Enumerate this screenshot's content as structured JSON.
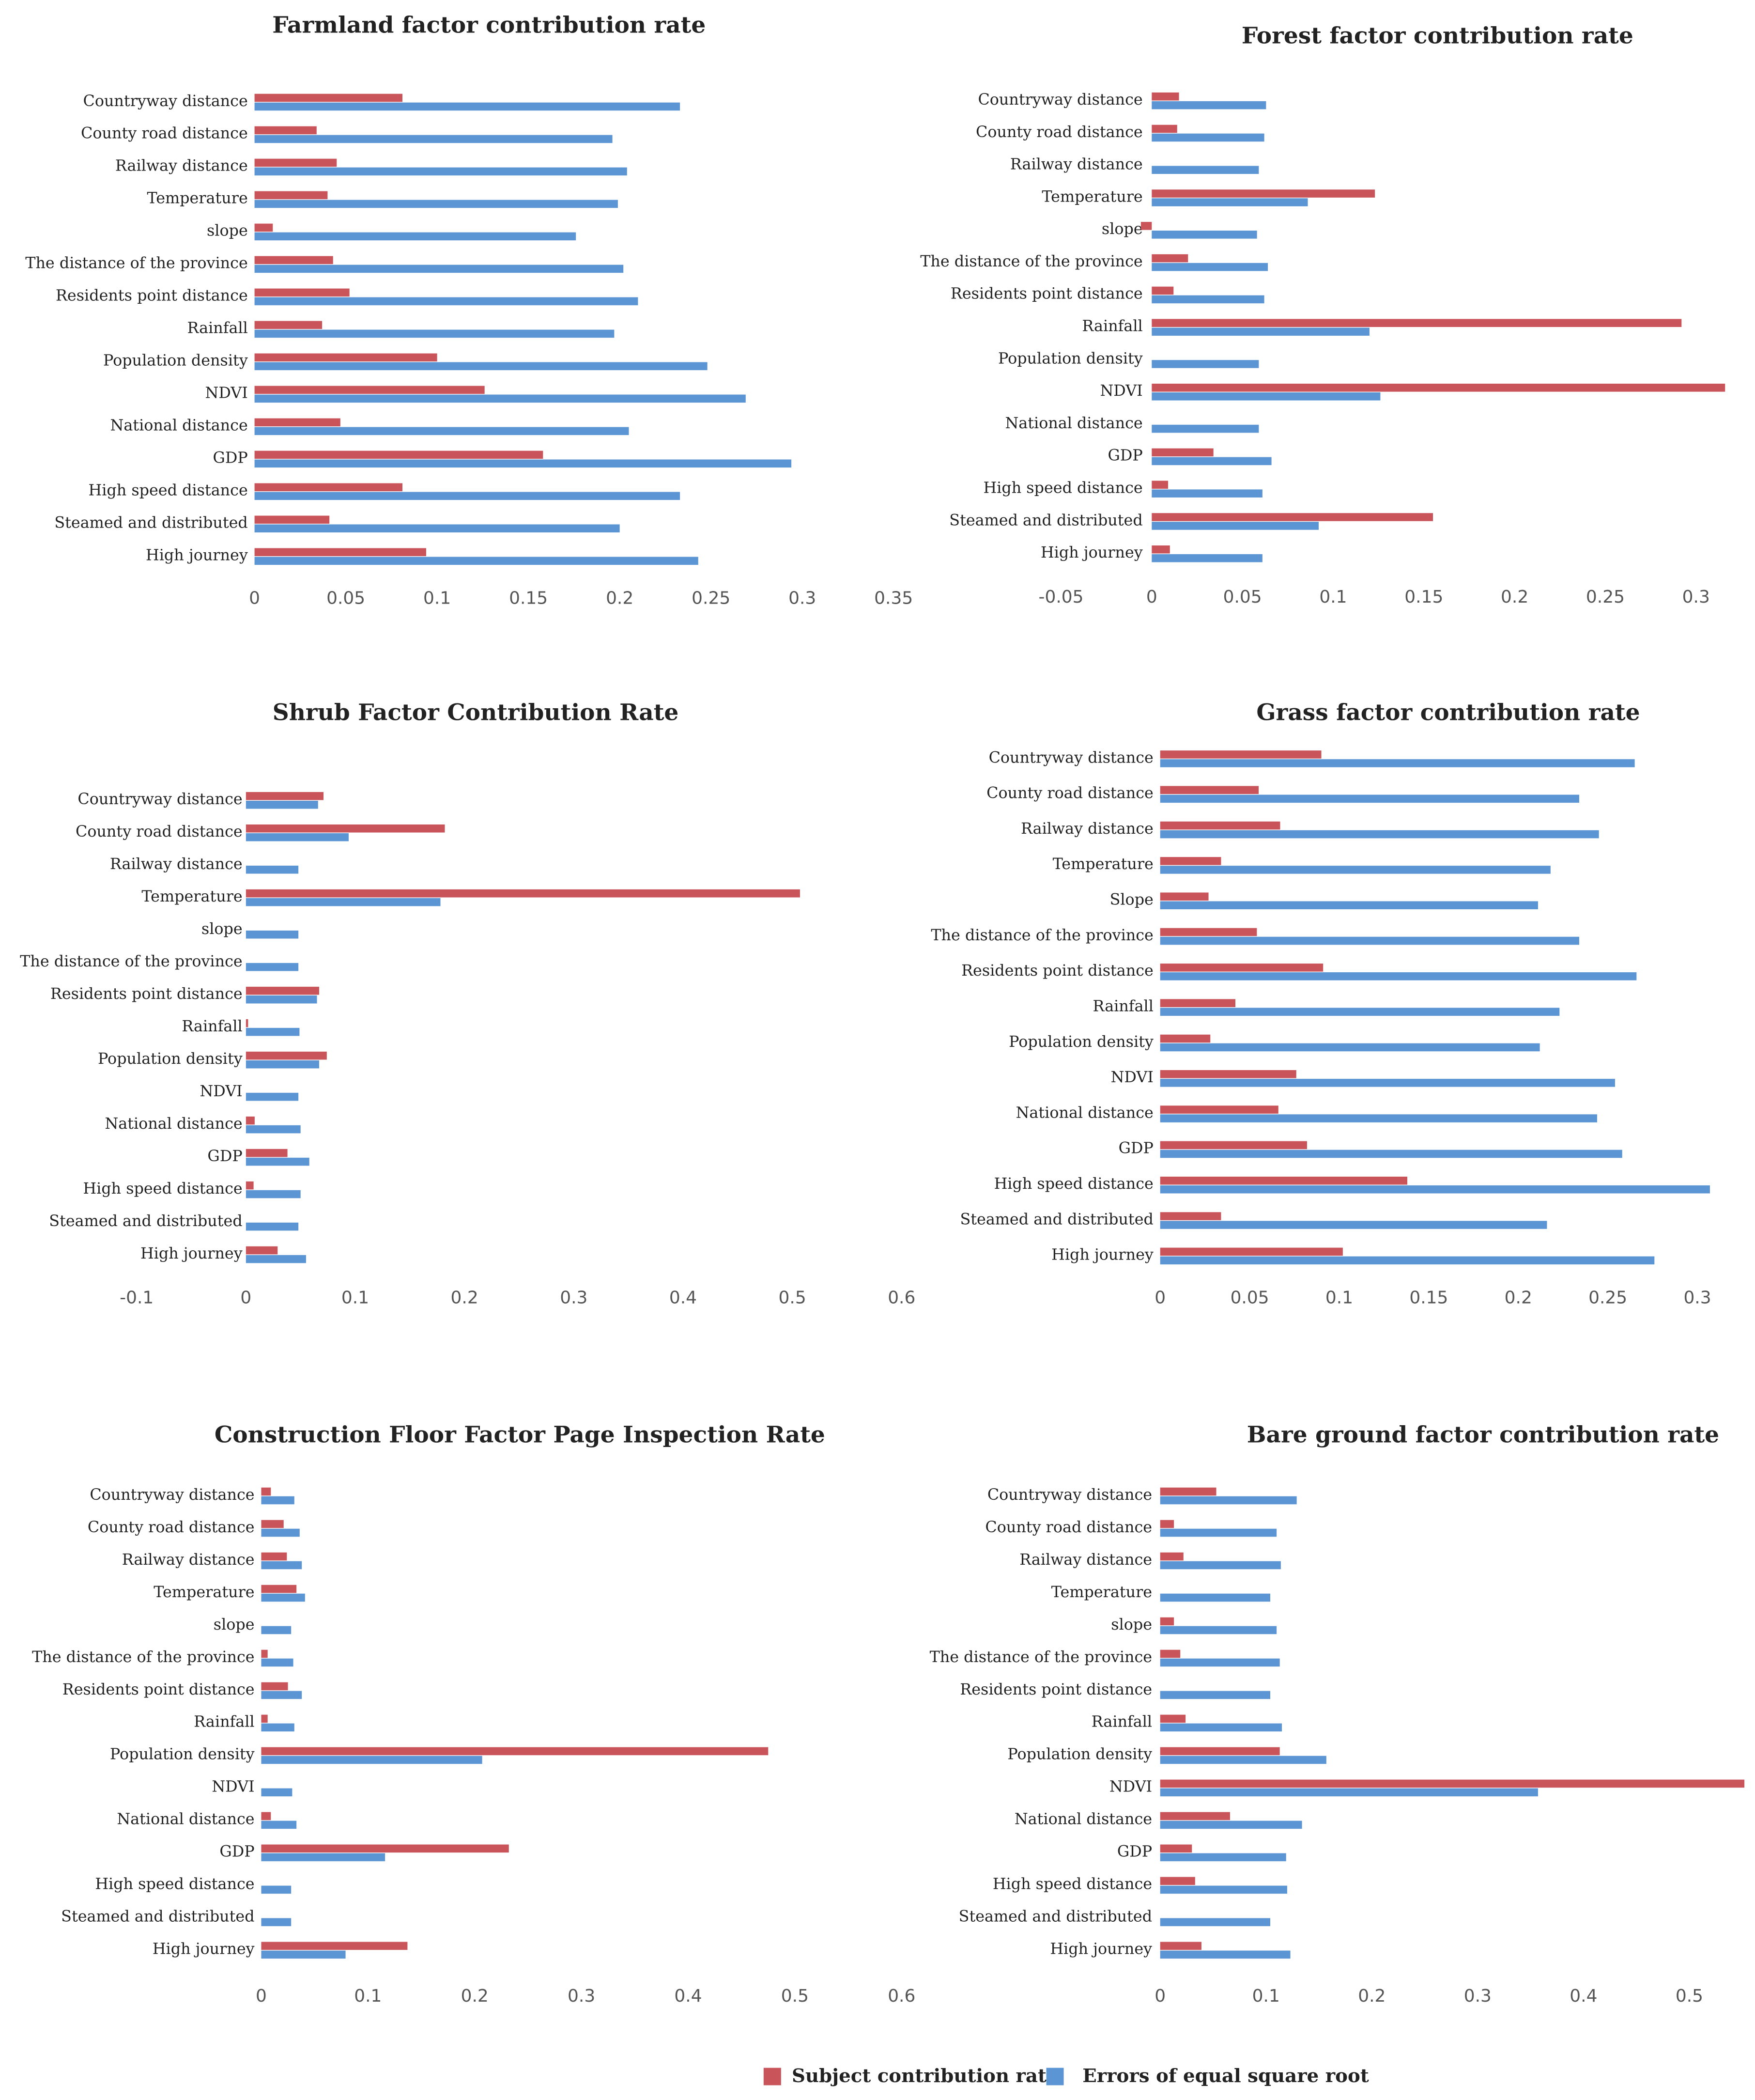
{
  "legend": [
    {
      "name": "Subject contribution rate",
      "color": "#c9545a"
    },
    {
      "name": "Errors of equal square root",
      "color": "#5b95d3"
    }
  ],
  "chart_data": [
    {
      "type": "bar",
      "orientation": "horizontal",
      "title": "Farmland factor contribution rate",
      "categories": [
        "Countryway distance",
        "County road distance",
        "Railway distance",
        "Temperature",
        "slope",
        "The distance of the province",
        "Residents point distance",
        "Rainfall",
        "Population density",
        "NDVI",
        "National distance",
        "GDP",
        "High speed distance",
        "Steamed and distributed",
        "High journey"
      ],
      "series": [
        {
          "values": [
            0.081,
            0.034,
            0.045,
            0.04,
            0.01,
            0.043,
            0.052,
            0.037,
            0.1,
            0.126,
            0.047,
            0.158,
            0.081,
            0.041,
            0.094
          ]
        },
        {
          "values": [
            0.233,
            0.196,
            0.204,
            0.199,
            0.176,
            0.202,
            0.21,
            0.197,
            0.248,
            0.269,
            0.205,
            0.294,
            0.233,
            0.2,
            0.243
          ]
        }
      ],
      "xlim": [
        0,
        0.35
      ],
      "xticks": [
        0,
        0.05,
        0.1,
        0.15,
        0.2,
        0.25,
        0.3,
        0.35
      ]
    },
    {
      "type": "bar",
      "orientation": "horizontal",
      "title": "Forest factor contribution rate",
      "categories": [
        "Countryway distance",
        "County road distance",
        "Railway distance",
        "Temperature",
        "slope",
        "The distance of the province",
        "Residents point distance",
        "Rainfall",
        "Population density",
        "NDVI",
        "National distance",
        "GDP",
        "High speed distance",
        "Steamed and distributed",
        "High journey"
      ],
      "series": [
        {
          "values": [
            0.015,
            0.014,
            0,
            0.123,
            -0.006,
            0.02,
            0.012,
            0.292,
            0,
            0.316,
            0,
            0.034,
            0.009,
            0.155,
            0.01
          ]
        },
        {
          "values": [
            0.063,
            0.062,
            0.059,
            0.086,
            0.058,
            0.064,
            0.062,
            0.12,
            0.059,
            0.126,
            0.059,
            0.066,
            0.061,
            0.092,
            0.061
          ]
        }
      ],
      "xlim": [
        -0.05,
        0.3
      ],
      "xticks": [
        -0.05,
        0,
        0.05,
        0.1,
        0.15,
        0.2,
        0.25,
        0.3
      ]
    },
    {
      "type": "bar",
      "orientation": "horizontal",
      "title": "Shrub Factor Contribution Rate",
      "categories": [
        "Countryway distance",
        "County road distance",
        "Railway distance",
        "Temperature",
        "slope",
        "The distance of the province",
        "Residents point distance",
        "Rainfall",
        "Population density",
        "NDVI",
        "National distance",
        "GDP",
        "High speed distance",
        "Steamed and distributed",
        "High journey"
      ],
      "series": [
        {
          "values": [
            0.071,
            0.182,
            0,
            0.507,
            0,
            0,
            0.067,
            0.002,
            0.074,
            0,
            0.008,
            0.038,
            0.007,
            0,
            0.029
          ]
        },
        {
          "values": [
            0.066,
            0.094,
            0.048,
            0.178,
            0.048,
            0.048,
            0.065,
            0.049,
            0.067,
            0.048,
            0.05,
            0.058,
            0.05,
            0.048,
            0.055
          ]
        }
      ],
      "xlim": [
        -0.1,
        0.6
      ],
      "xticks": [
        -0.1,
        0,
        0.1,
        0.2,
        0.3,
        0.4,
        0.5,
        0.6
      ]
    },
    {
      "type": "bar",
      "orientation": "horizontal",
      "title": "Grass factor contribution rate",
      "categories": [
        "Countryway distance",
        "County road distance",
        "Railway distance",
        "Temperature",
        "Slope",
        "The distance of the province",
        "Residents point distance",
        "Rainfall",
        "Population density",
        "NDVI",
        "National distance",
        "GDP",
        "High speed distance",
        "Steamed and distributed",
        "High journey"
      ],
      "series": [
        {
          "values": [
            0.09,
            0.055,
            0.067,
            0.034,
            0.027,
            0.054,
            0.091,
            0.042,
            0.028,
            0.076,
            0.066,
            0.082,
            0.138,
            0.034,
            0.102
          ]
        },
        {
          "values": [
            0.265,
            0.234,
            0.245,
            0.218,
            0.211,
            0.234,
            0.266,
            0.223,
            0.212,
            0.254,
            0.244,
            0.258,
            0.307,
            0.216,
            0.276
          ]
        }
      ],
      "xlim": [
        0,
        0.3
      ],
      "xticks": [
        0,
        0.05,
        0.1,
        0.15,
        0.2,
        0.25,
        0.3
      ]
    },
    {
      "type": "bar",
      "orientation": "horizontal",
      "title": "Construction Floor Factor Page Inspection Rate",
      "categories": [
        "Countryway distance",
        "County road distance",
        "Railway distance",
        "Temperature",
        "slope",
        "The distance of the province",
        "Residents point distance",
        "Rainfall",
        "Population density",
        "NDVI",
        "National distance",
        "GDP",
        "High speed distance",
        "Steamed and distributed",
        "High journey"
      ],
      "series": [
        {
          "values": [
            0.009,
            0.021,
            0.024,
            0.033,
            0,
            0.006,
            0.025,
            0.006,
            0.475,
            0,
            0.009,
            0.232,
            0,
            0,
            0.137
          ]
        },
        {
          "values": [
            0.031,
            0.036,
            0.038,
            0.041,
            0.028,
            0.03,
            0.038,
            0.031,
            0.207,
            0.029,
            0.033,
            0.116,
            0.028,
            0.028,
            0.079
          ]
        }
      ],
      "xlim": [
        0,
        0.6
      ],
      "xticks": [
        0,
        0.1,
        0.2,
        0.3,
        0.4,
        0.5,
        0.6
      ]
    },
    {
      "type": "bar",
      "orientation": "horizontal",
      "title": "Bare ground factor contribution rate",
      "categories": [
        "Countryway distance",
        "County road distance",
        "Railway distance",
        "Temperature",
        "slope",
        "The distance of the province",
        "Residents point distance",
        "Rainfall",
        "Population density",
        "NDVI",
        "National distance",
        "GDP",
        "High speed distance",
        "Steamed and distributed",
        "High journey"
      ],
      "series": [
        {
          "values": [
            0.053,
            0.013,
            0.022,
            0,
            0.013,
            0.019,
            0,
            0.024,
            0.113,
            0.552,
            0.066,
            0.03,
            0.033,
            0,
            0.039
          ]
        },
        {
          "values": [
            0.129,
            0.11,
            0.114,
            0.104,
            0.11,
            0.113,
            0.104,
            0.115,
            0.157,
            0.357,
            0.134,
            0.119,
            0.12,
            0.104,
            0.123
          ]
        }
      ],
      "xlim": [
        0,
        0.55
      ],
      "xticks": [
        0,
        0.1,
        0.2,
        0.3,
        0.4,
        0.5
      ]
    }
  ]
}
